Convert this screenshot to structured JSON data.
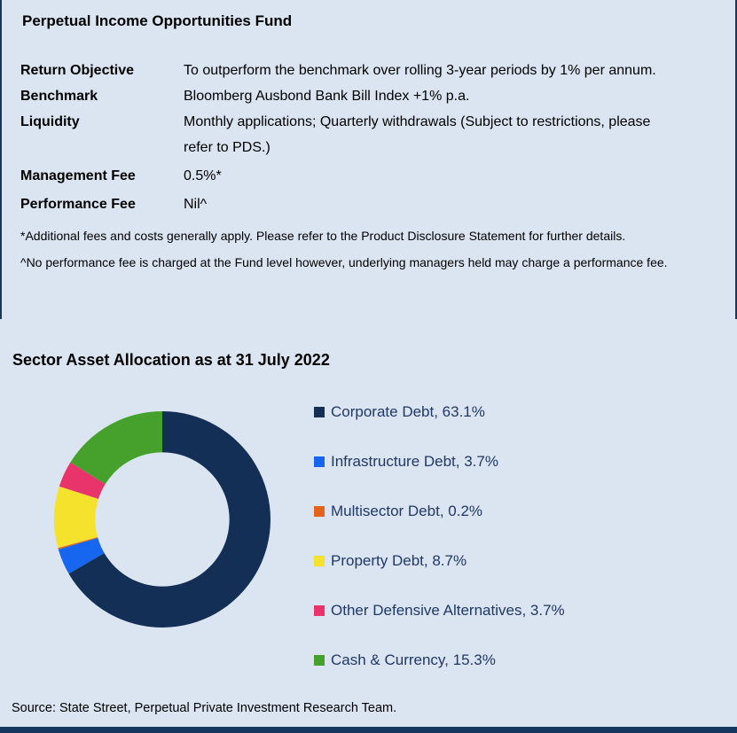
{
  "page": {
    "background": "#dbe5f1",
    "border_navy": "#17365d",
    "legend_text_color": "#1f3864"
  },
  "fund": {
    "title": "Perpetual Income Opportunities Fund",
    "rows": [
      {
        "label": "Return Objective",
        "value": "To outperform the benchmark over rolling 3-year periods by 1% per annum."
      },
      {
        "label": "Benchmark",
        "value": "Bloomberg Ausbond Bank Bill Index +1% p.a."
      },
      {
        "label": "Liquidity",
        "value": "Monthly applications; Quarterly withdrawals (Subject to restrictions, please refer to PDS.)"
      },
      {
        "label": "Management Fee",
        "value": "0.5%*"
      },
      {
        "label": "Performance Fee",
        "value": "Nil^"
      }
    ],
    "footnotes": [
      "*Additional fees and costs generally apply. Please refer to the Product Disclosure Statement for further details.",
      "^No performance fee is charged at the Fund level however, underlying managers held may charge a performance fee."
    ]
  },
  "allocation": {
    "heading": "Sector Asset Allocation as at 31 July 2022",
    "source": "Source: State Street, Perpetual Private Investment Research Team."
  },
  "chart_data": {
    "type": "pie",
    "subtype": "donut",
    "title": "Sector Asset Allocation as at 31 July 2022",
    "categories": [
      "Corporate Debt",
      "Infrastructure Debt",
      "Multisector Debt",
      "Property Debt",
      "Other Defensive Alternatives",
      "Cash & Currency"
    ],
    "values": [
      63.1,
      3.7,
      0.2,
      8.7,
      3.7,
      15.3
    ],
    "unit": "%",
    "colors": [
      "#142f56",
      "#1666f0",
      "#e3651b",
      "#f5e22c",
      "#e8336b",
      "#45a12c"
    ],
    "legend_position": "right",
    "start_angle_deg": 0,
    "direction": "clockwise",
    "donut_hole_ratio": 0.62
  }
}
